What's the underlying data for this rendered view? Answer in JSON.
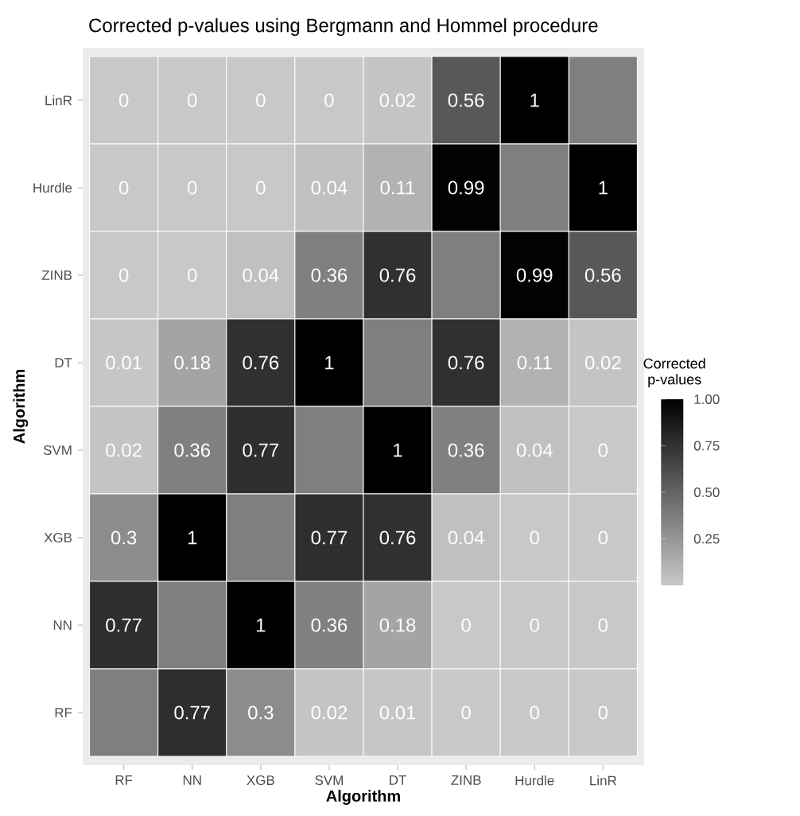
{
  "chart_data": {
    "type": "heatmap",
    "title": "Corrected p-values using Bergmann and Hommel procedure",
    "xlabel": "Algorithm",
    "ylabel": "Algorithm",
    "clabel": "Corrected p-values",
    "categories": [
      "RF",
      "NN",
      "XGB",
      "SVM",
      "DT",
      "ZINB",
      "Hurdle",
      "LinR"
    ],
    "y_categories": [
      "LinR",
      "Hurdle",
      "ZINB",
      "DT",
      "SVM",
      "XGB",
      "NN",
      "RF"
    ],
    "cells": [
      [
        0,
        0,
        0,
        0,
        0.02,
        0.56,
        1,
        null
      ],
      [
        0,
        0,
        0,
        0.04,
        0.11,
        0.99,
        null,
        1
      ],
      [
        0,
        0,
        0.04,
        0.36,
        0.76,
        null,
        0.99,
        0.56
      ],
      [
        0.01,
        0.18,
        0.76,
        1,
        null,
        0.76,
        0.11,
        0.02
      ],
      [
        0.02,
        0.36,
        0.77,
        null,
        1,
        0.36,
        0.04,
        0
      ],
      [
        0.3,
        1,
        null,
        0.77,
        0.76,
        0.04,
        0,
        0
      ],
      [
        0.77,
        null,
        1,
        0.36,
        0.18,
        0,
        0,
        0
      ],
      [
        null,
        0.77,
        0.3,
        0.02,
        0.01,
        0,
        0,
        0
      ]
    ],
    "data_labels": true,
    "clim": [
      0,
      1
    ],
    "cticks": [
      {
        "value": 0.25,
        "label": "0.25"
      },
      {
        "value": 0.5,
        "label": "0.50"
      },
      {
        "value": 0.75,
        "label": "0.75"
      },
      {
        "value": 1,
        "label": "1.00"
      }
    ]
  }
}
